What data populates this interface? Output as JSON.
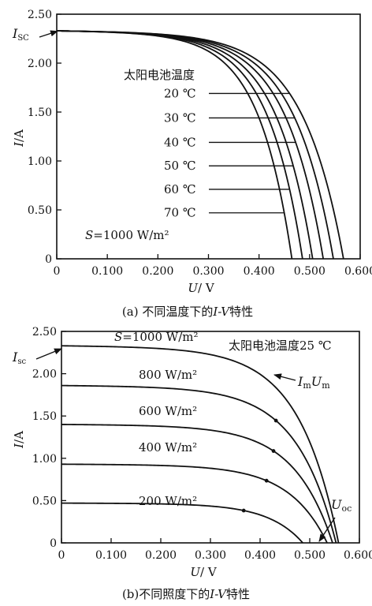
{
  "chart_data": [
    {
      "type": "line",
      "panel": "a",
      "caption_prefix": "(a) 不同温度下的",
      "caption_italic": "I-V",
      "caption_suffix": "特性",
      "ylabel_italic": "I",
      "ylabel_unit": "/A",
      "xlabel_italic": "U",
      "xlabel_unit": "/ V",
      "xlim": [
        0,
        0.6
      ],
      "ylim": [
        0,
        2.5
      ],
      "x_ticks": [
        "0",
        "0.100",
        "0.200",
        "0.300",
        "0.400",
        "0.500",
        "0.600"
      ],
      "y_ticks": [
        "0",
        "0.50",
        "1.00",
        "1.50",
        "2.00",
        "2.50"
      ],
      "isc_label": "I",
      "isc_sub": "SC",
      "isc_value": 2.33,
      "legend_title": "太阳电池温度",
      "condition_italic": "S",
      "condition_rest": "=1000 W/m²",
      "series": [
        {
          "name": "20 ℃",
          "isc": 2.33,
          "voc": 0.567,
          "label_y": 1.69
        },
        {
          "name": "30 ℃",
          "isc": 2.33,
          "voc": 0.547,
          "label_y": 1.44
        },
        {
          "name": "40 ℃",
          "isc": 2.33,
          "voc": 0.527,
          "label_y": 1.19
        },
        {
          "name": "50 ℃",
          "isc": 2.33,
          "voc": 0.506,
          "label_y": 0.95
        },
        {
          "name": "60 ℃",
          "isc": 2.33,
          "voc": 0.486,
          "label_y": 0.71
        },
        {
          "name": "70 ℃",
          "isc": 2.33,
          "voc": 0.465,
          "label_y": 0.47
        }
      ]
    },
    {
      "type": "line",
      "panel": "b",
      "caption_prefix": "(b)不同照度下的",
      "caption_italic": "I-V",
      "caption_suffix": "特性",
      "ylabel_italic": "I",
      "ylabel_unit": "/A",
      "xlabel_italic": "U",
      "xlabel_unit": "/ V",
      "xlim": [
        0,
        0.6
      ],
      "ylim": [
        0,
        2.5
      ],
      "x_ticks": [
        "0",
        "0.100",
        "0.200",
        "0.300",
        "0.400",
        "0.500",
        "0.600"
      ],
      "y_ticks": [
        "0",
        "0.50",
        "1.00",
        "1.50",
        "2.00",
        "2.50"
      ],
      "isc_label": "I",
      "isc_sub": "sc",
      "isc_value": 2.33,
      "temperature_label": "太阳电池温度25 ℃",
      "mpp_label_italic1": "I",
      "mpp_sub1": "m",
      "mpp_label_italic2": "U",
      "mpp_sub2": "m",
      "voc_label": "U",
      "voc_sub": "oc",
      "series": [
        {
          "name": "S=1000 W/m²",
          "name_italic": "S",
          "name_rest": "=1000 W/m²",
          "isc": 2.33,
          "voc": 0.558,
          "mpp_x": 0.445
        },
        {
          "name": "800 W/m²",
          "isc": 1.86,
          "voc": 0.553,
          "mpp_x": 0.432
        },
        {
          "name": "600 W/m²",
          "isc": 1.4,
          "voc": 0.546,
          "mpp_x": 0.427
        },
        {
          "name": "400 W/m²",
          "isc": 0.93,
          "voc": 0.535,
          "mpp_x": 0.413
        },
        {
          "name": "200 W/m²",
          "isc": 0.47,
          "voc": 0.486,
          "mpp_x": 0.367
        }
      ]
    }
  ]
}
